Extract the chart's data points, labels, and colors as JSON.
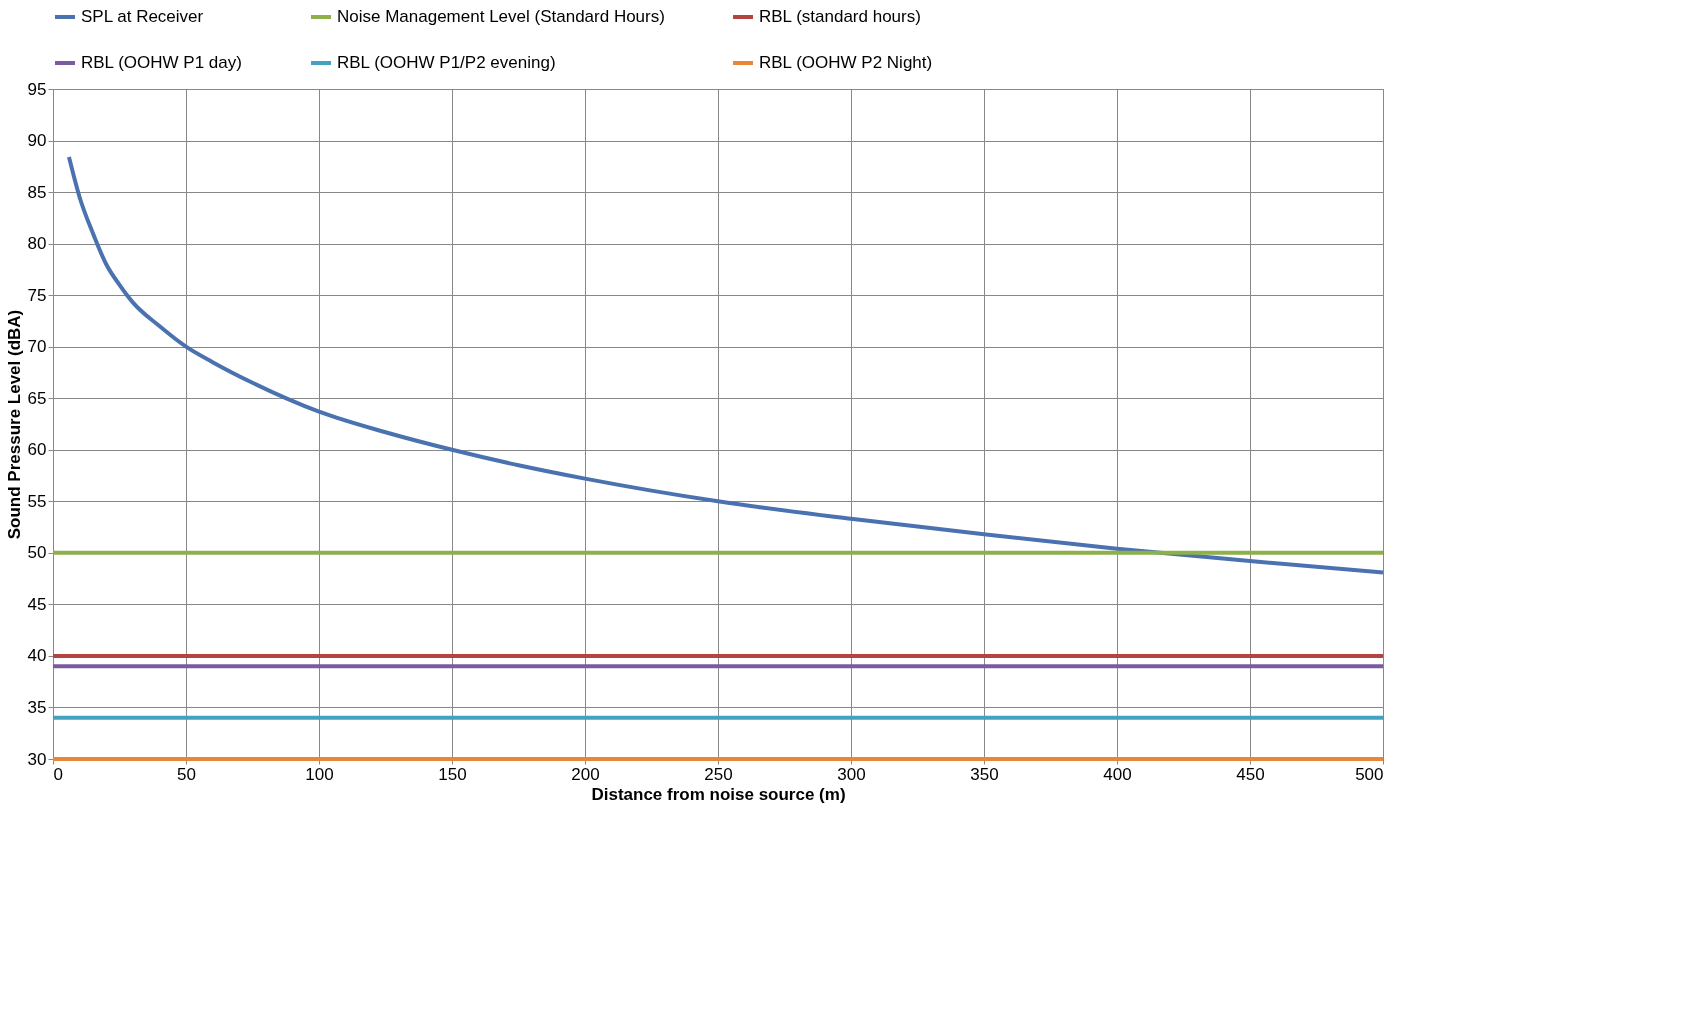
{
  "chart_data": {
    "type": "line",
    "xlabel": "Distance from noise source (m)",
    "ylabel": "Sound Pressure Level (dBA)",
    "xlim": [
      0,
      500
    ],
    "xticks": [
      0,
      50,
      100,
      150,
      200,
      250,
      300,
      350,
      400,
      450,
      500
    ],
    "ylim": [
      30,
      95
    ],
    "yticks": [
      30,
      35,
      40,
      45,
      50,
      55,
      60,
      65,
      70,
      75,
      80,
      85,
      90,
      95
    ],
    "grid": true,
    "legend": "top",
    "marker": "none",
    "line_style": "solid",
    "series": [
      {
        "name": "SPL at Receiver",
        "color": "#4a72b0",
        "x": [
          6,
          10,
          15,
          20,
          25,
          30,
          40,
          50,
          60,
          75,
          100,
          125,
          150,
          175,
          200,
          250,
          300,
          350,
          400,
          450,
          500
        ],
        "values": [
          88.4,
          84.5,
          81,
          78,
          76,
          74.3,
          72,
          70,
          68.5,
          66.5,
          63.7,
          61.7,
          60,
          58.5,
          57.2,
          55,
          53.3,
          51.8,
          50.4,
          49.2,
          48.1
        ]
      },
      {
        "name": "Noise Management Level (Standard Hours)",
        "color": "#8db048",
        "x": [
          0,
          500
        ],
        "values": [
          50,
          50
        ]
      },
      {
        "name": "RBL (standard hours)",
        "color": "#b44440",
        "x": [
          0,
          500
        ],
        "values": [
          40,
          40
        ]
      },
      {
        "name": "RBL (OOHW P1 day)",
        "color": "#7b5aa0",
        "x": [
          0,
          500
        ],
        "values": [
          39,
          39
        ]
      },
      {
        "name": "RBL (OOHW P1/P2 evening)",
        "color": "#43a2bf",
        "x": [
          0,
          500
        ],
        "values": [
          34,
          34
        ]
      },
      {
        "name": "RBL (OOHW P2 Night)",
        "color": "#e8873a",
        "x": [
          0,
          500
        ],
        "values": [
          30,
          30
        ]
      }
    ]
  }
}
